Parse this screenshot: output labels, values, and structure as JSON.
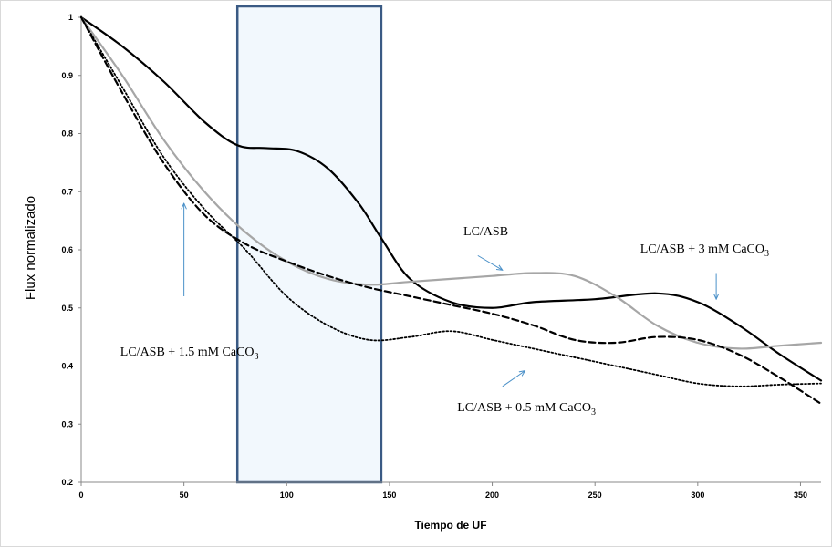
{
  "chart_data": {
    "type": "line",
    "title": "",
    "xlabel": "Tiempo de UF",
    "ylabel": "Flux normalizado",
    "xlim": [
      0,
      360
    ],
    "ylim": [
      0.2,
      1.0
    ],
    "x_ticks": [
      0,
      50,
      100,
      150,
      200,
      250,
      300,
      350
    ],
    "y_ticks": [
      0.2,
      0.3,
      0.4,
      0.5,
      0.6,
      0.7,
      0.8,
      0.9,
      1.0
    ],
    "y_tick_labels": [
      "0.2",
      "0.3",
      "0.4",
      "0.5",
      "0.6",
      "0.7",
      "0.8",
      "0.9",
      "1"
    ],
    "grid": false,
    "legend": "none",
    "highlight_region": {
      "x_start": 76,
      "x_end": 146,
      "fill": "#f2f8fd",
      "stroke": "#3a5a84"
    },
    "series": [
      {
        "style": "solid-black",
        "color": "#000000",
        "x": [
          0,
          20,
          40,
          60,
          76,
          90,
          105,
          120,
          135,
          146,
          160,
          180,
          200,
          220,
          250,
          280,
          300,
          320,
          340,
          360
        ],
        "y": [
          1.0,
          0.95,
          0.89,
          0.82,
          0.78,
          0.775,
          0.77,
          0.74,
          0.68,
          0.62,
          0.55,
          0.51,
          0.5,
          0.51,
          0.515,
          0.525,
          0.51,
          0.47,
          0.42,
          0.375
        ]
      },
      {
        "style": "solid-gray",
        "color": "#a6a6a6",
        "x": [
          0,
          20,
          40,
          60,
          80,
          100,
          120,
          140,
          160,
          180,
          200,
          220,
          240,
          260,
          280,
          300,
          320,
          340,
          360
        ],
        "y": [
          1.0,
          0.9,
          0.79,
          0.7,
          0.63,
          0.58,
          0.55,
          0.54,
          0.545,
          0.55,
          0.555,
          0.56,
          0.555,
          0.52,
          0.47,
          0.44,
          0.43,
          0.435,
          0.44
        ]
      },
      {
        "style": "dashed-black",
        "color": "#000000",
        "x": [
          0,
          20,
          40,
          60,
          80,
          100,
          120,
          140,
          160,
          180,
          200,
          220,
          240,
          260,
          280,
          300,
          320,
          340,
          360
        ],
        "y": [
          1.0,
          0.87,
          0.75,
          0.66,
          0.61,
          0.58,
          0.555,
          0.535,
          0.52,
          0.505,
          0.49,
          0.47,
          0.445,
          0.44,
          0.45,
          0.445,
          0.42,
          0.38,
          0.335
        ]
      },
      {
        "style": "dotted-black",
        "color": "#000000",
        "x": [
          0,
          20,
          40,
          60,
          80,
          100,
          120,
          140,
          160,
          180,
          200,
          220,
          240,
          260,
          280,
          300,
          320,
          340,
          360
        ],
        "y": [
          1.0,
          0.88,
          0.76,
          0.67,
          0.6,
          0.52,
          0.47,
          0.445,
          0.45,
          0.46,
          0.445,
          0.43,
          0.415,
          0.4,
          0.385,
          0.37,
          0.365,
          0.368,
          0.37
        ]
      }
    ],
    "annotations": [
      {
        "id": "lc-asb",
        "text": "LC/ASB",
        "sub": "",
        "x": 186,
        "y": 0.625,
        "arrow": {
          "from": [
            193,
            0.59
          ],
          "to": [
            205,
            0.565
          ]
        }
      },
      {
        "id": "lc-asb-3mm",
        "text": "LC/ASB + 3 mM CaCO",
        "sub": "3",
        "x": 272,
        "y": 0.595,
        "arrow": {
          "from": [
            309,
            0.56
          ],
          "to": [
            309,
            0.515
          ]
        }
      },
      {
        "id": "lc-asb-1-5mm",
        "text": "LC/ASB + 1.5 mM CaCO",
        "sub": "3",
        "x": 19,
        "y": 0.418,
        "arrow": {
          "from": [
            50,
            0.52
          ],
          "to": [
            50,
            0.68
          ]
        }
      },
      {
        "id": "lc-asb-0-5mm",
        "text": "LC/ASB + 0.5 mM CaCO",
        "sub": "3",
        "x": 183,
        "y": 0.322,
        "arrow": {
          "from": [
            205,
            0.365
          ],
          "to": [
            216,
            0.392
          ]
        }
      }
    ]
  }
}
